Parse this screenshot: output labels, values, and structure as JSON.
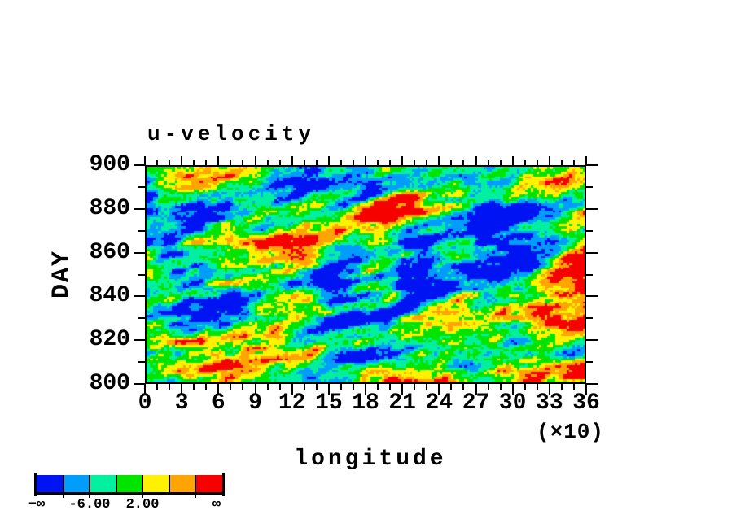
{
  "title": "u-velocity",
  "axes": {
    "x": {
      "label": "longitude",
      "multiplier": "(×10)",
      "ticks": [
        "0",
        "3",
        "6",
        "9",
        "12",
        "15",
        "18",
        "21",
        "24",
        "27",
        "30",
        "33",
        "36"
      ],
      "minors_between_majors": 2
    },
    "y": {
      "label": "DAY",
      "ticks": [
        "900",
        "880",
        "860",
        "840",
        "820",
        "800"
      ],
      "minors_between_majors": 1
    }
  },
  "colorbar": {
    "colors": [
      "#0013f2",
      "#009dfd",
      "#00f0a0",
      "#00e400",
      "#fff200",
      "#ffa400",
      "#f70000"
    ],
    "tick_labels": [
      {
        "text": "−∞",
        "at": 0
      },
      {
        "text": "-6.00",
        "at": 2
      },
      {
        "text": "2.00",
        "at": 4
      },
      {
        "text": "∞",
        "at": 6.8
      }
    ],
    "descender_ticks": [
      1,
      2,
      4,
      6
    ]
  },
  "chart_data": {
    "type": "heatmap",
    "title": "u-velocity",
    "xlabel": "longitude",
    "x_units_note": "(×10)",
    "ylabel": "DAY",
    "xlim": [
      0,
      36
    ],
    "ylim": [
      800,
      900
    ],
    "x_tick_labels": [
      "0",
      "3",
      "6",
      "9",
      "12",
      "15",
      "18",
      "21",
      "24",
      "27",
      "30",
      "33",
      "36"
    ],
    "y_tick_labels": [
      "800",
      "820",
      "840",
      "860",
      "880",
      "900"
    ],
    "palette": [
      "#0013f2",
      "#009dfd",
      "#00f0a0",
      "#00e400",
      "#fff200",
      "#ffa400",
      "#f70000"
    ],
    "colorbar_labeled_values": [
      "−∞",
      "-6.00",
      "2.00",
      "∞"
    ],
    "legend_position": "bottom-left",
    "grid": false,
    "field_description": "dense pixelated u-velocity anomaly field; horizontally elongated eastward-tilted streaks; blue (low) bands near longitude 150 and 290, red (high) bands near longitude 60 and 230"
  }
}
